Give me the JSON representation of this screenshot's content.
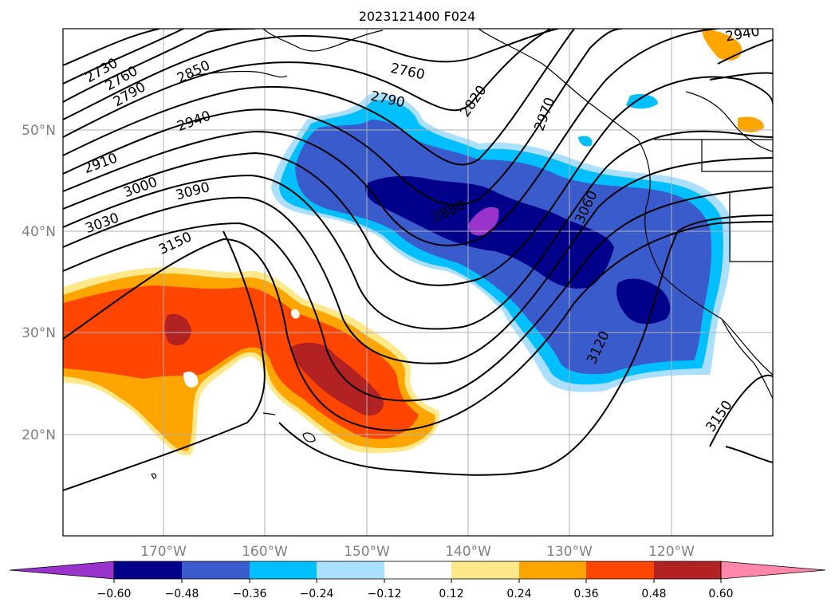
{
  "title": "2023121400 F024",
  "map": {
    "lon_labels": [
      "170°W",
      "160°W",
      "150°W",
      "140°W",
      "130°W",
      "120°W"
    ],
    "lat_labels": [
      "50°N",
      "40°N",
      "30°N",
      "20°N"
    ]
  },
  "contour_labels": [
    "2730",
    "2760",
    "2790",
    "2850",
    "2760",
    "2790",
    "2820",
    "2970",
    "2940",
    "2910",
    "3000",
    "3090",
    "3030",
    "2880",
    "3060",
    "3150",
    "3120",
    "3150",
    "2940"
  ],
  "colorbar": {
    "ticks": [
      "−0.60",
      "−0.48",
      "−0.36",
      "−0.24",
      "−0.12",
      "0.12",
      "0.24",
      "0.36",
      "0.48",
      "0.60"
    ],
    "colors": [
      "#9933cc",
      "#00008b",
      "#3a5bcc",
      "#00bfff",
      "#aadfff",
      "#ffffff",
      "#ffe88a",
      "#ffa500",
      "#ff4500",
      "#b22222",
      "#ff88aa"
    ]
  }
}
